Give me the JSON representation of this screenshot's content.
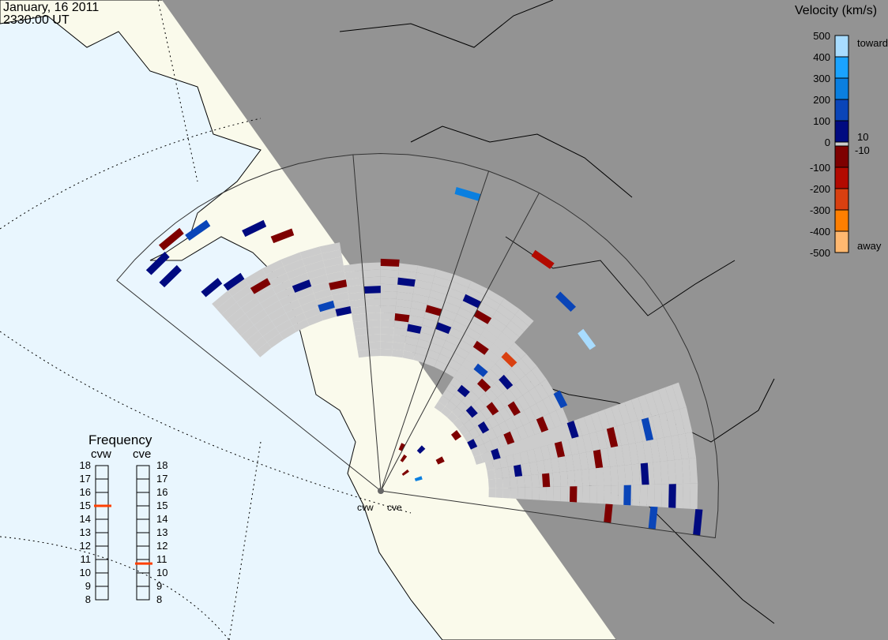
{
  "header": {
    "date": "January, 16 2011",
    "time": "2330:00 UT"
  },
  "velocity_scale": {
    "title": "Velocity (km/s)",
    "ticks": [
      "500",
      "400",
      "300",
      "200",
      "100",
      "0",
      "-100",
      "-200",
      "-300",
      "-400",
      "-500"
    ],
    "inner_labels": [
      "10",
      "-10"
    ],
    "end_labels": {
      "top": "toward",
      "bottom": "away"
    },
    "colors": [
      "#a8dcff",
      "#1aa3ff",
      "#0a7fe0",
      "#0a45b8",
      "#000a80",
      "#cccccc",
      "#7e0000",
      "#b30a00",
      "#d94010",
      "#ff7f00",
      "#ffb870"
    ]
  },
  "frequency": {
    "title": "Frequency",
    "radars": [
      {
        "name": "cvw",
        "value_mhz": 15.0
      },
      {
        "name": "cve",
        "value_mhz": 10.7
      }
    ],
    "ticks": [
      "18",
      "17",
      "16",
      "15",
      "14",
      "13",
      "12",
      "11",
      "10",
      "9",
      "8"
    ],
    "range": [
      8,
      18
    ],
    "marker_color": "#ff4000"
  },
  "map": {
    "radar_labels": [
      "cvw",
      "cve"
    ],
    "colors": {
      "ocean": "#e9f6fe",
      "land_day": "#fafaeb",
      "night": "#939393",
      "ground_scatter": "#cccccc"
    },
    "ground_scatter": [
      {
        "beams": [
          2,
          9
        ],
        "gates": [
          40,
          55
        ]
      },
      {
        "beams": [
          9,
          20
        ],
        "gates": [
          30,
          50
        ]
      },
      {
        "beams": [
          18,
          27
        ],
        "gates": [
          22,
          44
        ]
      },
      {
        "beams": [
          26,
          31
        ],
        "gates": [
          24,
          70
        ]
      }
    ],
    "cells": [
      [
        1,
        70,
        80
      ],
      [
        1,
        66,
        60
      ],
      [
        2,
        72,
        -60
      ],
      [
        3,
        70,
        150
      ],
      [
        2,
        58,
        60
      ],
      [
        3,
        56,
        90
      ],
      [
        4,
        52,
        -80
      ],
      [
        5,
        64,
        40
      ],
      [
        6,
        60,
        -40
      ],
      [
        6,
        48,
        90
      ],
      [
        7,
        42,
        120
      ],
      [
        8,
        40,
        80
      ],
      [
        8,
        46,
        -30
      ],
      [
        10,
        44,
        50
      ],
      [
        11,
        50,
        -60
      ],
      [
        12,
        46,
        60
      ],
      [
        12,
        38,
        -50
      ],
      [
        13,
        36,
        70
      ],
      [
        14,
        41,
        -90
      ],
      [
        15,
        38,
        60
      ],
      [
        16,
        46,
        80
      ],
      [
        17,
        44,
        -70
      ],
      [
        18,
        38,
        -40
      ],
      [
        19,
        34,
        100
      ],
      [
        19,
        28,
        60
      ],
      [
        20,
        40,
        -250
      ],
      [
        20,
        32,
        -80
      ],
      [
        21,
        36,
        60
      ],
      [
        21,
        26,
        90
      ],
      [
        22,
        30,
        -60
      ],
      [
        22,
        20,
        -60
      ],
      [
        23,
        26,
        70
      ],
      [
        23,
        34,
        -80
      ],
      [
        24,
        14,
        -60
      ],
      [
        24,
        22,
        90
      ],
      [
        25,
        30,
        -70
      ],
      [
        25,
        38,
        -90
      ],
      [
        26,
        26,
        60
      ],
      [
        26,
        44,
        80
      ],
      [
        27,
        40,
        -70
      ],
      [
        27,
        52,
        -80
      ],
      [
        28,
        30,
        60
      ],
      [
        28,
        48,
        -60
      ],
      [
        29,
        36,
        -80
      ],
      [
        29,
        58,
        70
      ],
      [
        30,
        42,
        -70
      ],
      [
        30,
        64,
        60
      ],
      [
        31,
        50,
        -80
      ],
      [
        31,
        70,
        70
      ],
      [
        14,
        68,
        250
      ],
      [
        18,
        62,
        -150
      ],
      [
        20,
        58,
        100
      ],
      [
        22,
        56,
        400
      ],
      [
        24,
        44,
        100
      ],
      [
        27,
        60,
        100
      ],
      [
        29,
        48,
        0
      ],
      [
        30,
        54,
        100
      ],
      [
        31,
        60,
        100
      ],
      [
        16,
        10,
        -60
      ],
      [
        18,
        8,
        -70
      ],
      [
        20,
        12,
        60
      ],
      [
        22,
        6,
        -60
      ],
      [
        26,
        8,
        200
      ]
    ]
  }
}
